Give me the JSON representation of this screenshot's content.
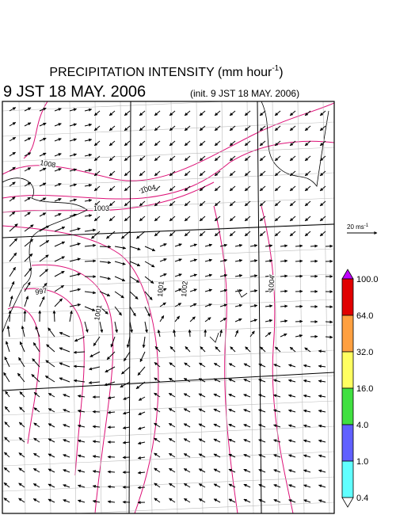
{
  "header": {
    "title": "PRECIPITATION INTENSITY (mm hour",
    "title_superscript": "-1",
    "title_end": ")",
    "valid_time": "9 JST 18 MAY. 2006",
    "init_time": "(init. 9 JST 18 MAY. 2006)"
  },
  "map": {
    "contour_labels": [
      "1008",
      "1004",
      "1003",
      "997",
      "1001",
      "1001",
      "1002",
      "1004"
    ]
  },
  "scale": {
    "label": "20 ms",
    "superscript": "-1"
  },
  "colorbar": {
    "levels": [
      "100.0",
      "64.0",
      "32.0",
      "16.0",
      "4.0",
      "1.0",
      "0.4"
    ],
    "colors": [
      "#c000ff",
      "#e00000",
      "#ffa040",
      "#ffff60",
      "#40e040",
      "#6060ff",
      "#60ffff",
      "#ffffff"
    ]
  }
}
